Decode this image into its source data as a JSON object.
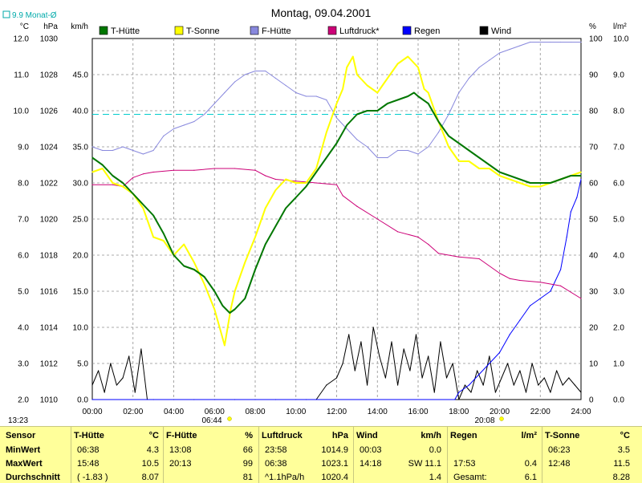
{
  "header": {
    "title": "Montag, 09.04.2001",
    "avg_label": "9.9 Monat-Ø"
  },
  "footer": {
    "time_left": "13:23",
    "marker_left": "06:44",
    "marker_right": "20:08"
  },
  "chart_data": {
    "type": "line",
    "title": "Montag, 09.04.2001",
    "x_ticks": [
      "00:00",
      "02:00",
      "04:00",
      "06:00",
      "08:00",
      "10:00",
      "12:00",
      "14:00",
      "16:00",
      "18:00",
      "20:00",
      "22:00",
      "24:00"
    ],
    "axes": {
      "left1": {
        "unit": "°C",
        "ticks": [
          "12.0",
          "11.0",
          "10.0",
          "9.0",
          "8.0",
          "7.0",
          "6.0",
          "5.0",
          "4.0",
          "3.0",
          "2.0"
        ],
        "range": [
          2.0,
          12.0
        ]
      },
      "left2": {
        "unit": "hPa",
        "ticks": [
          "1030",
          "1028",
          "1026",
          "1024",
          "1022",
          "1020",
          "1018",
          "1016",
          "1014",
          "1012",
          "1010"
        ],
        "range": [
          1010,
          1030
        ]
      },
      "left3": {
        "unit": "km/h",
        "ticks": [
          "45.0",
          "40.0",
          "35.0",
          "30.0",
          "25.0",
          "20.0",
          "15.0",
          "10.0",
          "5.0",
          "0.0"
        ],
        "range": [
          0,
          50
        ]
      },
      "right1": {
        "unit": "%",
        "ticks": [
          "100",
          "90",
          "80",
          "70",
          "60",
          "50",
          "40",
          "30",
          "20",
          "10",
          "0"
        ],
        "range": [
          0,
          100
        ]
      },
      "right2": {
        "unit": "l/m²",
        "ticks": [
          "10.0",
          "9.0",
          "8.0",
          "7.0",
          "6.0",
          "5.0",
          "4.0",
          "3.0",
          "2.0",
          "1.0",
          "0.0"
        ],
        "range": [
          0,
          10
        ]
      }
    },
    "reference_line": {
      "axis": "left1",
      "value": 9.9,
      "color": "#00cccc"
    },
    "legend": [
      {
        "name": "T-Hütte",
        "color": "#007700"
      },
      {
        "name": "T-Sonne",
        "color": "#ffff00"
      },
      {
        "name": "F-Hütte",
        "color": "#8888dd"
      },
      {
        "name": "Luftdruck*",
        "color": "#cc0077"
      },
      {
        "name": "Regen",
        "color": "#0000ff"
      },
      {
        "name": "Wind",
        "color": "#000000"
      }
    ],
    "series": [
      {
        "name": "T-Hütte",
        "axis": "left1",
        "color": "#007700",
        "x": [
          0,
          0.5,
          1,
          1.5,
          2,
          2.5,
          3,
          3.5,
          4,
          4.5,
          5,
          5.5,
          6,
          6.4,
          6.75,
          7,
          7.5,
          8,
          8.5,
          9,
          9.5,
          10,
          10.5,
          11,
          11.5,
          12,
          12.5,
          13,
          13.5,
          14,
          14.5,
          15,
          15.5,
          15.8,
          16,
          16.5,
          17,
          17.5,
          18,
          18.5,
          19,
          19.5,
          20,
          20.5,
          21,
          21.5,
          22,
          22.5,
          23,
          23.5,
          24
        ],
        "y": [
          8.7,
          8.5,
          8.2,
          8.0,
          7.7,
          7.4,
          7.1,
          6.6,
          6.0,
          5.7,
          5.6,
          5.4,
          5.0,
          4.6,
          4.4,
          4.5,
          4.8,
          5.6,
          6.3,
          6.8,
          7.3,
          7.6,
          7.9,
          8.3,
          8.7,
          9.1,
          9.6,
          9.9,
          10.0,
          10.0,
          10.2,
          10.3,
          10.4,
          10.5,
          10.4,
          10.2,
          9.7,
          9.3,
          9.1,
          8.9,
          8.7,
          8.5,
          8.3,
          8.2,
          8.1,
          8.0,
          8.0,
          8.0,
          8.1,
          8.2,
          8.2
        ]
      },
      {
        "name": "T-Sonne",
        "axis": "left1",
        "color": "#ffff00",
        "x": [
          0,
          0.5,
          1,
          1.5,
          2,
          2.5,
          3,
          3.5,
          4,
          4.5,
          5,
          5.5,
          6,
          6.3,
          6.5,
          6.8,
          7,
          7.5,
          8,
          8.5,
          9,
          9.5,
          10,
          10.5,
          11,
          11.5,
          12,
          12.3,
          12.5,
          12.8,
          13,
          13.5,
          14,
          14.5,
          15,
          15.5,
          16,
          16.3,
          16.5,
          17,
          17.5,
          18,
          18.5,
          19,
          19.5,
          20,
          20.5,
          21,
          21.5,
          22,
          22.5,
          23,
          23.5,
          24
        ],
        "y": [
          8.3,
          8.4,
          8.0,
          7.9,
          7.7,
          7.3,
          6.5,
          6.4,
          6.0,
          6.3,
          5.8,
          5.2,
          4.5,
          3.9,
          3.5,
          4.5,
          5.0,
          5.8,
          6.5,
          7.3,
          7.8,
          8.1,
          8.0,
          8.0,
          8.4,
          9.4,
          10.2,
          10.6,
          11.2,
          11.5,
          11.0,
          10.7,
          10.5,
          10.9,
          11.3,
          11.5,
          11.2,
          10.6,
          10.5,
          9.7,
          9.0,
          8.6,
          8.6,
          8.4,
          8.4,
          8.2,
          8.1,
          8.0,
          7.9,
          7.9,
          8.0,
          8.1,
          8.2,
          8.3
        ]
      },
      {
        "name": "F-Hütte",
        "axis": "right1",
        "color": "#8888dd",
        "x": [
          0,
          0.5,
          1,
          1.5,
          2,
          2.5,
          3,
          3.5,
          4,
          4.5,
          5,
          5.5,
          6,
          6.5,
          7,
          7.5,
          8,
          8.5,
          9,
          9.5,
          10,
          10.5,
          11,
          11.5,
          12,
          12.5,
          13,
          13.5,
          14,
          14.5,
          15,
          15.5,
          16,
          16.5,
          17,
          17.5,
          18,
          18.5,
          19,
          19.5,
          20,
          20.5,
          21,
          21.5,
          22,
          22.5,
          23,
          23.5,
          24
        ],
        "y": [
          70,
          69,
          69,
          70,
          69,
          68,
          69,
          73,
          75,
          76,
          77,
          79,
          82,
          85,
          88,
          90,
          91,
          91,
          89,
          87,
          85,
          84,
          84,
          83,
          78,
          75,
          72,
          70,
          67,
          67,
          69,
          69,
          68,
          70,
          74,
          79,
          85,
          89,
          92,
          94,
          96,
          97,
          98,
          99,
          99,
          99,
          99,
          99,
          99
        ]
      },
      {
        "name": "Luftdruck*",
        "axis": "left2",
        "color": "#cc0077",
        "x": [
          0,
          1,
          1.5,
          2,
          2.5,
          3,
          4,
          5,
          6,
          7,
          8,
          8.5,
          9,
          10,
          11,
          12,
          12.3,
          13,
          14,
          15,
          16,
          16.5,
          17,
          18,
          19,
          20,
          20.5,
          21,
          22,
          23,
          24
        ],
        "y": [
          1021.9,
          1021.9,
          1021.8,
          1022.3,
          1022.5,
          1022.6,
          1022.7,
          1022.7,
          1022.8,
          1022.8,
          1022.7,
          1022.4,
          1022.2,
          1022.1,
          1022.0,
          1021.9,
          1021.3,
          1020.7,
          1020.0,
          1019.3,
          1019.0,
          1018.6,
          1018.1,
          1017.9,
          1017.8,
          1017.0,
          1016.7,
          1016.6,
          1016.5,
          1016.3,
          1015.6
        ]
      },
      {
        "name": "Regen",
        "axis": "right2",
        "color": "#0000ff",
        "x": [
          0,
          17.8,
          18,
          18.5,
          19,
          19.5,
          20,
          20.5,
          21,
          21.5,
          22,
          22.5,
          23,
          23.3,
          23.5,
          23.8,
          24
        ],
        "y": [
          0,
          0,
          0.2,
          0.4,
          0.7,
          1.0,
          1.3,
          1.8,
          2.2,
          2.6,
          2.8,
          3.0,
          3.6,
          4.5,
          5.2,
          5.6,
          6.1
        ]
      },
      {
        "name": "Wind",
        "axis": "left3",
        "color": "#000000",
        "x": [
          0,
          0.3,
          0.6,
          0.9,
          1.2,
          1.5,
          1.8,
          2.1,
          2.4,
          2.7,
          3,
          4,
          5,
          6,
          7,
          8,
          9,
          10,
          10.5,
          11,
          11.5,
          12,
          12.3,
          12.6,
          12.9,
          13.2,
          13.5,
          13.8,
          14.1,
          14.4,
          14.7,
          15,
          15.3,
          15.6,
          15.9,
          16.2,
          16.5,
          16.8,
          17.1,
          17.4,
          17.7,
          18,
          18.3,
          18.6,
          18.9,
          19.2,
          19.5,
          19.8,
          20.1,
          20.4,
          20.7,
          21,
          21.3,
          21.6,
          21.9,
          22.2,
          22.5,
          22.8,
          23.1,
          23.4,
          23.7,
          24
        ],
        "y": [
          2,
          4,
          1,
          5,
          2,
          3,
          6,
          1,
          7,
          0,
          0,
          0,
          0,
          0,
          0,
          0,
          0,
          0,
          0,
          0,
          2,
          3,
          5,
          9,
          4,
          8,
          2,
          10,
          6,
          3,
          8,
          2,
          7,
          4,
          9,
          3,
          6,
          1,
          8,
          3,
          5,
          0,
          2,
          1,
          4,
          2,
          6,
          1,
          3,
          5,
          2,
          4,
          1,
          5,
          2,
          3,
          1,
          4,
          2,
          3,
          2,
          1
        ]
      }
    ]
  },
  "stats": {
    "row_labels": [
      "Sensor",
      "MinWert",
      "MaxWert",
      "Durchschnitt"
    ],
    "blocks": [
      {
        "name": "T-Hütte",
        "unit": "°C",
        "rows": [
          [
            "06:38",
            "4.3"
          ],
          [
            "15:48",
            "10.5"
          ],
          [
            "( -1.83 )",
            "8.07"
          ]
        ]
      },
      {
        "name": "F-Hütte",
        "unit": "%",
        "rows": [
          [
            "13:08",
            "66"
          ],
          [
            "20:13",
            "99"
          ],
          [
            "",
            "81"
          ]
        ]
      },
      {
        "name": "Luftdruck",
        "unit": "hPa",
        "rows": [
          [
            "23:58",
            "1014.9"
          ],
          [
            "06:38",
            "1023.1"
          ],
          [
            "^1.1hPa/h",
            "1020.4"
          ]
        ]
      },
      {
        "name": "Wind",
        "unit": "km/h",
        "rows": [
          [
            "00:03",
            "0.0"
          ],
          [
            "14:18",
            "SW 11.1"
          ],
          [
            "",
            "1.4"
          ]
        ]
      },
      {
        "name": "Regen",
        "unit": "l/m²",
        "rows": [
          [
            "",
            ""
          ],
          [
            "17:53",
            "0.4"
          ],
          [
            "Gesamt:",
            "6.1"
          ]
        ]
      },
      {
        "name": "T-Sonne",
        "unit": "°C",
        "rows": [
          [
            "06:23",
            "3.5"
          ],
          [
            "12:48",
            "11.5"
          ],
          [
            "",
            "8.28"
          ]
        ]
      }
    ]
  }
}
